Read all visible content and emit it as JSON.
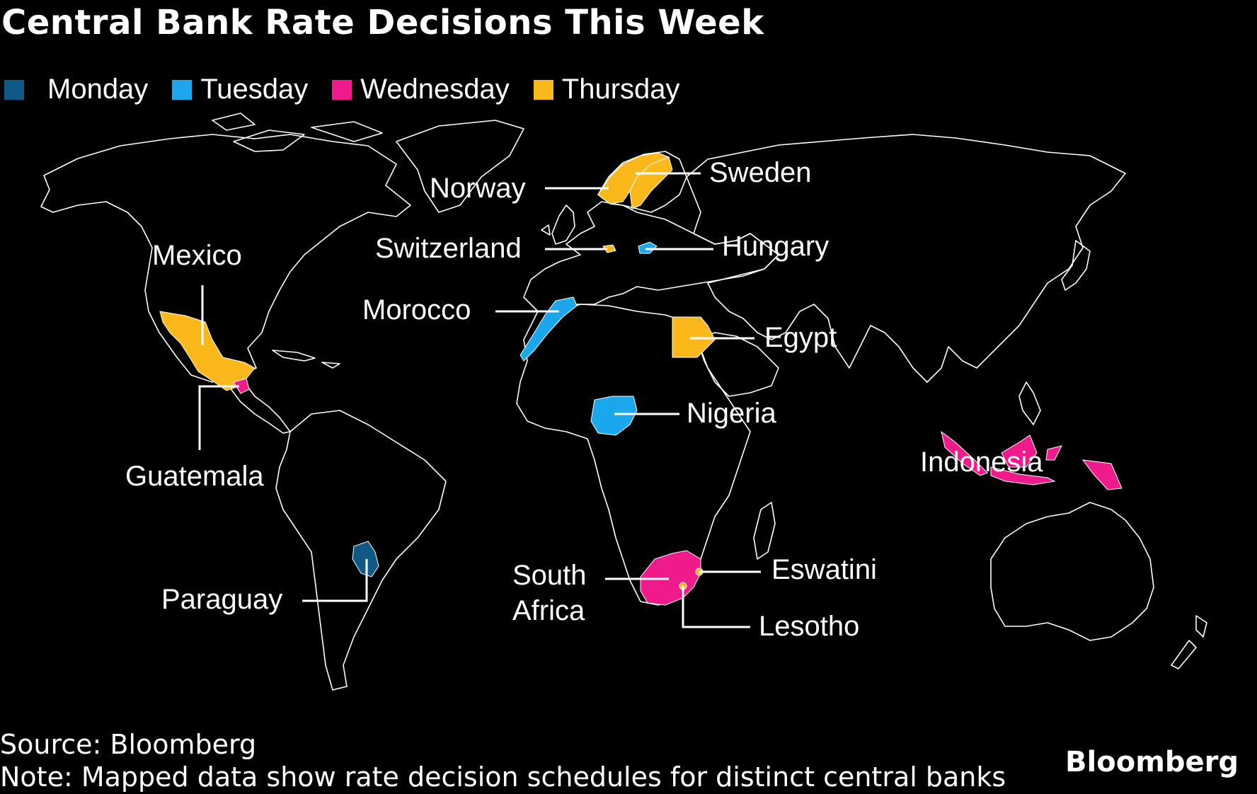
{
  "title": "Central Bank Rate Decisions This Week",
  "legend": [
    {
      "label": "Monday",
      "color": "#0e5a84"
    },
    {
      "label": "Tuesday",
      "color": "#1aa7ec"
    },
    {
      "label": "Wednesday",
      "color": "#ef1a8b"
    },
    {
      "label": "Thursday",
      "color": "#fbb81a"
    }
  ],
  "countries": {
    "norway": "Norway",
    "sweden": "Sweden",
    "switzerland": "Switzerland",
    "hungary": "Hungary",
    "mexico": "Mexico",
    "morocco": "Morocco",
    "egypt": "Egypt",
    "nigeria": "Nigeria",
    "guatemala": "Guatemala",
    "indonesia": "Indonesia",
    "south_africa_line1": "South",
    "south_africa_line2": "Africa",
    "eswatini": "Eswatini",
    "lesotho": "Lesotho",
    "paraguay": "Paraguay"
  },
  "footer": {
    "source": "Source: Bloomberg",
    "note": "Note: Mapped data show rate decision schedules for distinct central banks",
    "brand": "Bloomberg"
  }
}
